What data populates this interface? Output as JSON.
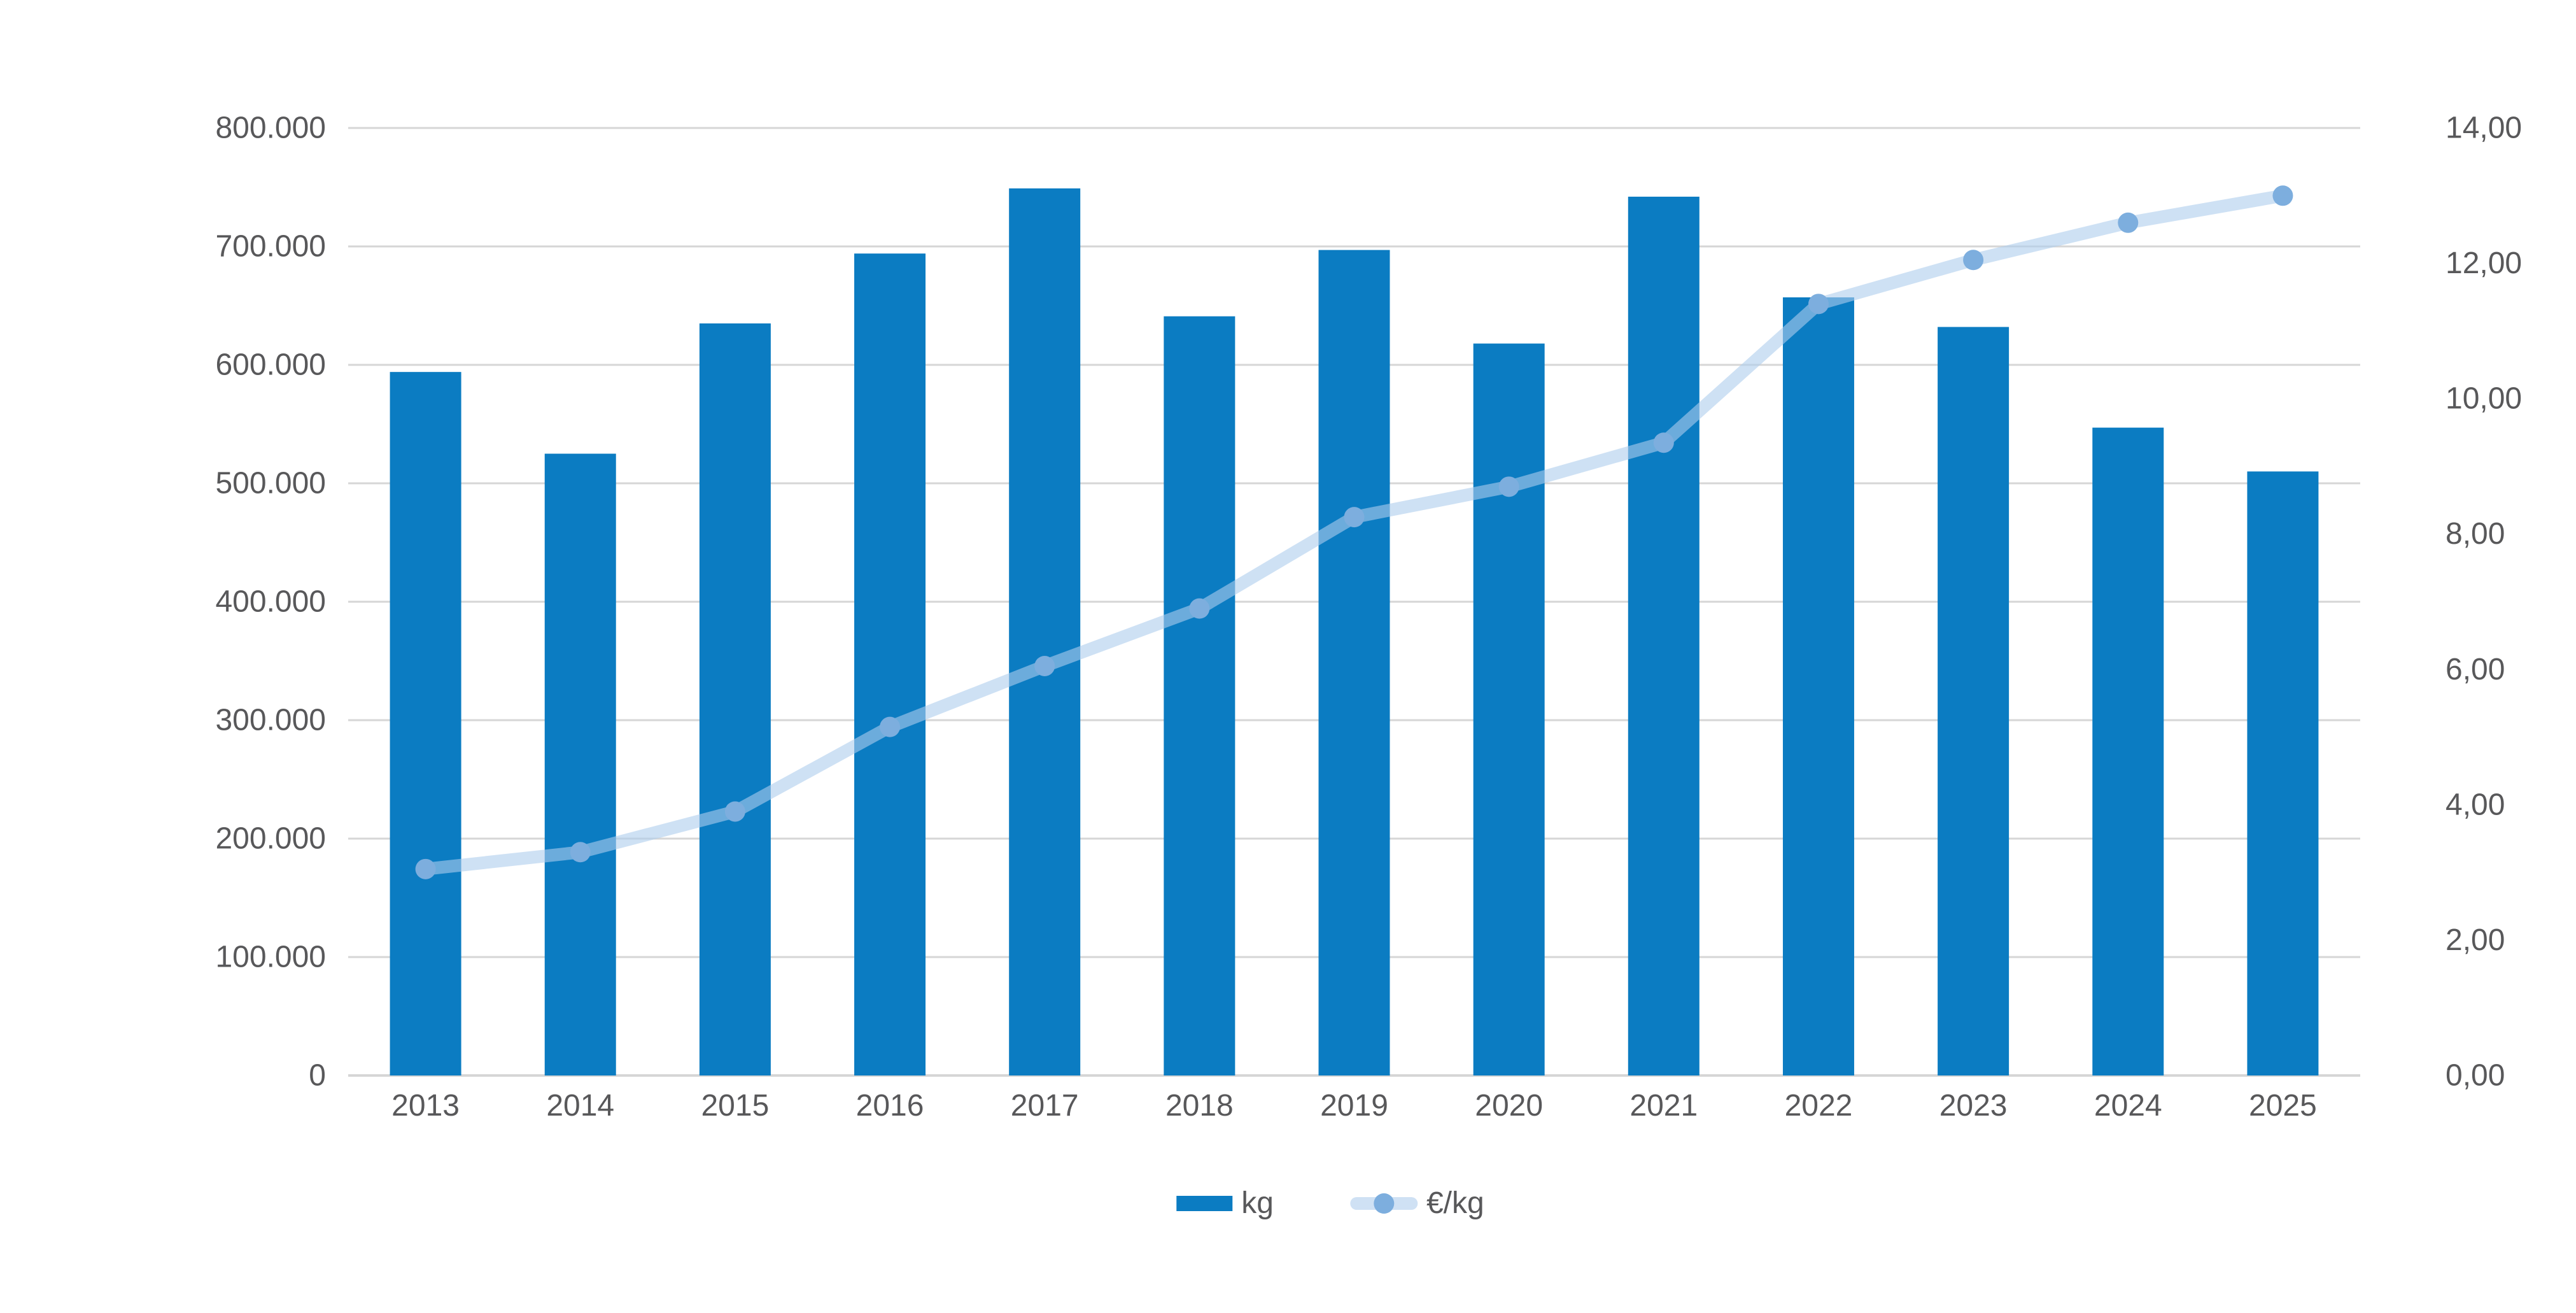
{
  "chart_data": {
    "type": "combo-bar-line",
    "title": "",
    "categories": [
      "2013",
      "2014",
      "2015",
      "2016",
      "2017",
      "2018",
      "2019",
      "2020",
      "2021",
      "2022",
      "2023",
      "2024",
      "2025"
    ],
    "series": [
      {
        "name": "kg",
        "type": "bar",
        "axis": "left",
        "values": [
          594000,
          525000,
          635000,
          694000,
          749000,
          641000,
          697000,
          618000,
          742000,
          657000,
          632000,
          547000,
          510000
        ]
      },
      {
        "name": "€/kg",
        "type": "line",
        "axis": "right",
        "values": [
          3.05,
          3.3,
          3.9,
          5.15,
          6.05,
          6.9,
          8.25,
          8.7,
          9.35,
          11.4,
          12.05,
          12.6,
          13.0
        ]
      }
    ],
    "left_axis": {
      "min": 0,
      "max": 800000,
      "step": 100000,
      "tick_labels": [
        "0",
        "100.000",
        "200.000",
        "300.000",
        "400.000",
        "500.000",
        "600.000",
        "700.000",
        "800.000"
      ]
    },
    "right_axis": {
      "min": 0,
      "max": 14,
      "step": 2,
      "tick_labels": [
        "0,00",
        "2,00",
        "4,00",
        "6,00",
        "8,00",
        "10,00",
        "12,00",
        "14,00"
      ]
    },
    "grid": true,
    "legend_position": "bottom"
  },
  "legend": {
    "items": [
      {
        "label": "kg",
        "swatch": "bar"
      },
      {
        "label": "€/kg",
        "swatch": "line-dot"
      }
    ]
  },
  "colors": {
    "bar": "#0b7cc2",
    "line": "#aecdec",
    "line_over_white": "#cfe1f4",
    "point": "#7daede",
    "grid": "#d6d6d6",
    "text": "#58585a",
    "background": "#ffffff"
  }
}
